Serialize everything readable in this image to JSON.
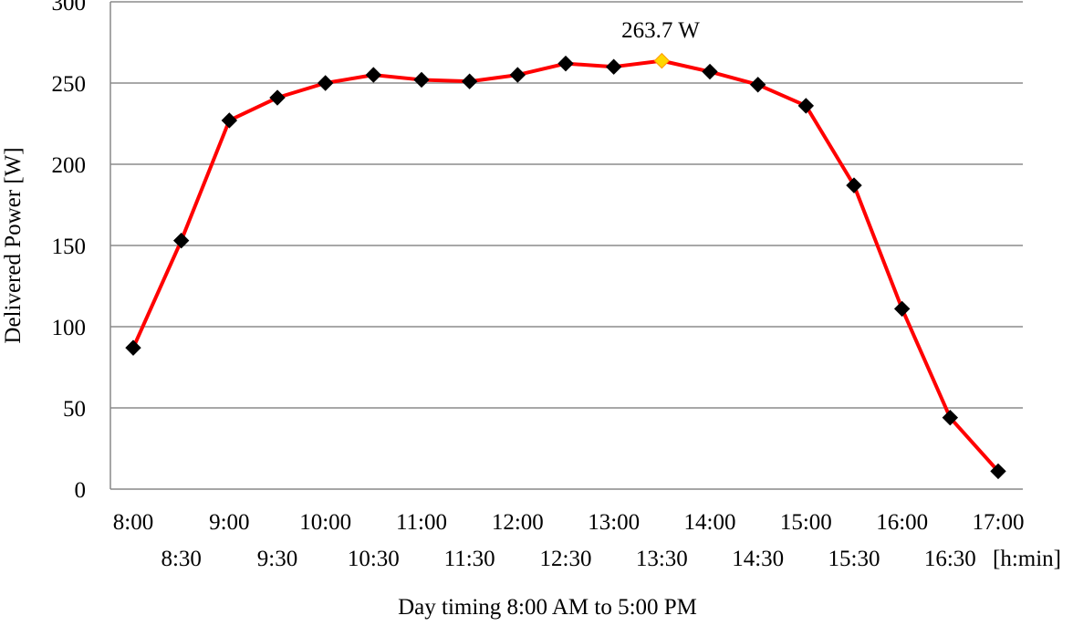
{
  "chart_data": {
    "type": "line",
    "title": "",
    "xlabel": "Day timing 8:00 AM to 5:00 PM",
    "ylabel": "Delivered Power [W]",
    "x_unit_label": "[h:min]",
    "ylim": [
      0,
      300
    ],
    "yticks": [
      0,
      50,
      100,
      150,
      200,
      250,
      300
    ],
    "grid": true,
    "categories": [
      "8:00",
      "8:30",
      "9:00",
      "9:30",
      "10:00",
      "10:30",
      "11:00",
      "11:30",
      "12:00",
      "12:30",
      "13:00",
      "13:30",
      "14:00",
      "14:30",
      "15:00",
      "15:30",
      "16:00",
      "16:30",
      "17:00"
    ],
    "series": [
      {
        "values": [
          87,
          153,
          227,
          241,
          250,
          255,
          252,
          251,
          255,
          262,
          260,
          263.7,
          257,
          249,
          236,
          187,
          111,
          44,
          11
        ],
        "line_color": "#ff0000",
        "marker_color": "#000000"
      }
    ],
    "annotation": {
      "text": "263.7 W",
      "category": "13:30",
      "value": 263.7,
      "highlight_marker_color": "#ffd700"
    }
  }
}
